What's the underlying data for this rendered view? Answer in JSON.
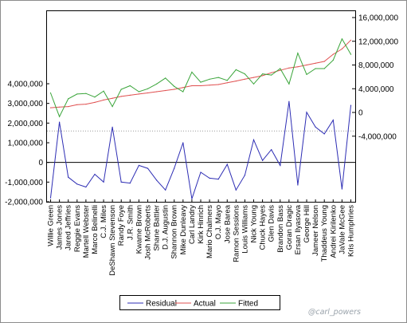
{
  "chart_data": {
    "type": "line",
    "categories": [
      "Willie Green",
      "James Jones",
      "Jared Jeffries",
      "Reggie Evans",
      "Martell Webster",
      "Marco Belinelli",
      "C.J. Miles",
      "DeShawn Stevenson",
      "Randy Foye",
      "J.R. Smith",
      "Kwame Brown",
      "Josh McRoberts",
      "Shane Battier",
      "D.J. Augustin",
      "Shannon Brown",
      "Mike Dunleavy",
      "Carl Landry",
      "Kirk Hinrich",
      "Mario Chalmers",
      "O.J. Mayo",
      "Jose Barea",
      "Ramon Sessions",
      "Louis Williams",
      "Nick Young",
      "Chuck Hayes",
      "Glen Davis",
      "Brandon Bass",
      "Goran Dragic",
      "Ersan Ilyasova",
      "George Hill",
      "Jameer Nelson",
      "Thaddeus Young",
      "Andrei Kirilenko",
      "JaVale McGee",
      "Kris Humphries"
    ],
    "series": [
      {
        "name": "Residual",
        "axis": "left",
        "color": "#2d2db4",
        "values": [
          -1800000,
          2050000,
          -750000,
          -1100000,
          -1250000,
          -600000,
          -1000000,
          1800000,
          -1000000,
          -1050000,
          -150000,
          -300000,
          -900000,
          -1400000,
          -300000,
          1000000,
          -1850000,
          -500000,
          -800000,
          -850000,
          -100000,
          -1400000,
          -650000,
          1150000,
          100000,
          650000,
          -150000,
          3100000,
          -1150000,
          2550000,
          1800000,
          1450000,
          2150000,
          -1350000,
          2900000
        ]
      },
      {
        "name": "Actual",
        "axis": "right",
        "color": "#e05050",
        "values": [
          800000,
          900000,
          1000000,
          1300000,
          1400000,
          1700000,
          2100000,
          2400000,
          2700000,
          2900000,
          3100000,
          3300000,
          3500000,
          3700000,
          3900000,
          4200000,
          4500000,
          4500000,
          4600000,
          4700000,
          5000000,
          5300000,
          5600000,
          5900000,
          6200000,
          6700000,
          7100000,
          7500000,
          7700000,
          8000000,
          8300000,
          8600000,
          9800000,
          10700000,
          12200000
        ]
      },
      {
        "name": "Fitted",
        "axis": "right",
        "color": "#3aa53a",
        "values": [
          3300000,
          -700000,
          2300000,
          3100000,
          3200000,
          2600000,
          3600000,
          1000000,
          3900000,
          4500000,
          3500000,
          4000000,
          4800000,
          5800000,
          4400000,
          3500000,
          6800000,
          5100000,
          5600000,
          5900000,
          5400000,
          7200000,
          6500000,
          4800000,
          6500000,
          6300000,
          7400000,
          4800000,
          10000000,
          6400000,
          7400000,
          7400000,
          8800000,
          12400000,
          9800000
        ]
      }
    ],
    "y_left": {
      "ticks": [
        "4,000,000",
        "3,000,000",
        "2,000,000",
        "1,000,000",
        "0",
        "-1,000,000",
        "-2,000,000"
      ],
      "lim": [
        -2000000,
        4000000
      ]
    },
    "y_right": {
      "ticks": [
        "16,000,000",
        "12,000,000",
        "8,000,000",
        "4,000,000",
        "0",
        "-4,000,000"
      ],
      "lim": [
        -8000000,
        16000000
      ]
    },
    "reference_lines": [
      {
        "axis": "left",
        "value": 0,
        "style": "solid"
      },
      {
        "axis": "left",
        "value": 1600000,
        "style": "dotted"
      }
    ],
    "legend": {
      "position": "bottom",
      "entries": [
        "Residual",
        "Actual",
        "Fitted"
      ]
    },
    "grid": false
  },
  "watermark": "@carl_powers"
}
